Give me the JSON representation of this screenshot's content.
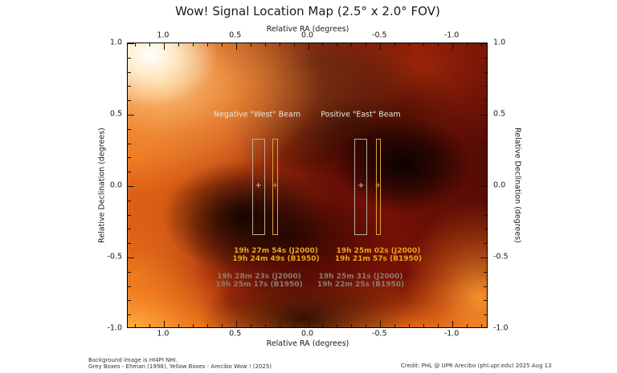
{
  "title": "Wow! Signal Location Map (2.5° x 2.0° FOV)",
  "axes": {
    "x_label": "Relative RA (degrees)",
    "y_label": "Relative Declination (degrees)",
    "x_ticks": [
      "1.0",
      "0.5",
      "0.0",
      "-0.5",
      "-1.0"
    ],
    "y_ticks": [
      "1.0",
      "0.5",
      "0.0",
      "-0.5",
      "-1.0"
    ]
  },
  "beams": {
    "west": {
      "label": "Negative \"West\" Beam",
      "arecibo": {
        "j2000": "19h 27m 54s (J2000)",
        "b1950": "19h 24m 49s (B1950)"
      },
      "ehman": {
        "j2000": "19h 28m 23s (J2000)",
        "b1950": "19h 25m 17s (B1950)"
      }
    },
    "east": {
      "label": "Positive \"East\" Beam",
      "arecibo": {
        "j2000": "19h 25m 02s (J2000)",
        "b1950": "19h 21m 57s (B1950)"
      },
      "ehman": {
        "j2000": "19h 25m 31s (J2000)",
        "b1950": "19h 22m 25s (B1950)"
      }
    }
  },
  "footer": {
    "note_line1": "Background image is HI4PI NHI.",
    "note_line2": "Grey Boxes - Ehman (1998), Yellow Boxes - Arecibo Wow ! (2025)",
    "credit": "Credit: PHL @ UPR Arecibo (phl.upr.edu) 2025 Aug 13"
  },
  "colors": {
    "yellow_box": "#d9a33c",
    "yellow_marker": "#e3a42e",
    "yellow_text": "#e9a81e",
    "grey_box": "#b9ad9e",
    "grey_marker": "#d6cec2",
    "grey_text": "#8a7e6f",
    "beam_label_text": "#ece6db",
    "tick_color": "#111111",
    "text_color": "#1a1a1a",
    "caption_color": "#333333"
  },
  "chart_data": {
    "type": "heatmap",
    "title": "Wow! Signal Location Map (2.5° x 2.0° FOV)",
    "xlabel": "Relative RA (degrees)",
    "ylabel": "Relative Declination (degrees)",
    "xlim": [
      1.25,
      -1.25
    ],
    "ylim": [
      -1.0,
      1.0
    ],
    "x_ticks": [
      1.0,
      0.5,
      0.0,
      -0.5,
      -1.0
    ],
    "y_ticks": [
      1.0,
      0.5,
      0.0,
      -0.5,
      -1.0
    ],
    "grid": false,
    "colormap": "hot-style: white/orange = high HI4PI NHI, dark red/black = low; background is HI4PI NHI sky image",
    "background_features": [
      {
        "name": "bright HI maximum (white spot)",
        "ra": 1.1,
        "dec": 0.92
      },
      {
        "name": "bright orange region",
        "ra": 1.2,
        "dec": 0.2
      },
      {
        "name": "dark HI minimum",
        "ra": -0.68,
        "dec": 0.14
      },
      {
        "name": "dark region",
        "ra": -0.28,
        "dec": 0.42
      },
      {
        "name": "dark region",
        "ra": 0.45,
        "dec": -0.22
      },
      {
        "name": "bright band along bottom edge",
        "ra": 0.0,
        "dec": -1.0
      },
      {
        "name": "bright orange bottom-left corner",
        "ra": 1.25,
        "dec": -1.0
      },
      {
        "name": "bright orange bottom-right edge",
        "ra": -1.2,
        "dec": -0.78
      }
    ],
    "beams": [
      {
        "beam": "Negative \"West\" Beam",
        "boxes": [
          {
            "source": "Ehman (1998)",
            "color": "grey",
            "ra_center": 0.345,
            "ra_width": 0.09,
            "dec_center": 0.0,
            "dec_height": 0.67,
            "marker": "+ at dec 0"
          },
          {
            "source": "Arecibo Wow! (2025)",
            "color": "yellow",
            "ra_center": 0.225,
            "ra_width": 0.04,
            "dec_center": 0.0,
            "dec_height": 0.67,
            "marker": "+ at dec 0"
          }
        ],
        "yellow_labels": [
          "19h 27m 54s (J2000)",
          "19h 24m 49s (B1950)"
        ],
        "grey_labels": [
          "19h 28m 23s (J2000)",
          "19h 25m 17s (B1950)"
        ]
      },
      {
        "beam": "Positive \"East\" Beam",
        "boxes": [
          {
            "source": "Ehman (1998)",
            "color": "grey",
            "ra_center": -0.365,
            "ra_width": 0.09,
            "dec_center": 0.0,
            "dec_height": 0.67,
            "marker": "+ at dec 0"
          },
          {
            "source": "Arecibo Wow! (2025)",
            "color": "yellow",
            "ra_center": -0.48,
            "ra_width": 0.03,
            "dec_center": 0.0,
            "dec_height": 0.67,
            "marker": "+ at dec 0"
          }
        ],
        "yellow_labels": [
          "19h 25m 02s (J2000)",
          "19h 21m 57s (B1950)"
        ],
        "grey_labels": [
          "19h 25m 31s (J2000)",
          "19h 22m 25s (B1950)"
        ]
      }
    ]
  }
}
